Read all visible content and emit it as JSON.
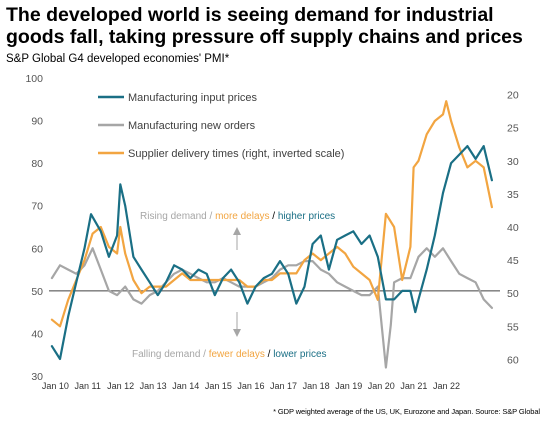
{
  "header": {
    "title": "The developed world is seeing demand for industrial goods fall, taking pressure off supply chains and prices",
    "subtitle": "S&P Global G4 developed economies' PMI*",
    "footnote": "* GDP weighted average of the US, UK, Eurozone and Japan.  Source: S&P Global"
  },
  "colors": {
    "input_prices": "#1a6f85",
    "new_orders": "#a6a6a6",
    "delivery": "#f2a541",
    "baseline": "#404040",
    "arrow": "#a6a6a6",
    "ann_grey": "#a6a6a6"
  },
  "annotations": {
    "rising": [
      "Rising demand",
      " / ",
      "more delays",
      " / ",
      "higher prices"
    ],
    "falling": [
      "Falling demand",
      " / ",
      "fewer delays",
      " / ",
      "lower prices"
    ]
  },
  "chart_data": {
    "type": "line",
    "x_ticks": [
      "Jan 10",
      "Jan 11",
      "Jan 12",
      "Jan 13",
      "Jan 14",
      "Jan 15",
      "Jan 16",
      "Jan 17",
      "Jan 18",
      "Jan 19",
      "Jan 20",
      "Jan 21",
      "Jan 22"
    ],
    "ylim_left": [
      30,
      100
    ],
    "left_ticks": [
      30,
      40,
      50,
      60,
      70,
      80,
      90,
      100
    ],
    "ylim_right": [
      62.5,
      17.5
    ],
    "right_ticks": [
      20,
      25,
      30,
      35,
      40,
      45,
      50,
      55,
      60
    ],
    "right_inverted": true,
    "reference_line": 50,
    "legend_position": "top-left",
    "series": [
      {
        "name": "Manufacturing input prices",
        "axis": "left",
        "points": [
          [
            2010.0,
            37
          ],
          [
            2010.25,
            34
          ],
          [
            2010.5,
            44
          ],
          [
            2010.75,
            52
          ],
          [
            2011.0,
            60
          ],
          [
            2011.2,
            68
          ],
          [
            2011.5,
            64
          ],
          [
            2011.75,
            58
          ],
          [
            2012.0,
            63
          ],
          [
            2012.1,
            75
          ],
          [
            2012.25,
            70
          ],
          [
            2012.5,
            58
          ],
          [
            2012.75,
            55
          ],
          [
            2013.0,
            52
          ],
          [
            2013.25,
            49
          ],
          [
            2013.5,
            52
          ],
          [
            2013.75,
            56
          ],
          [
            2014.0,
            55
          ],
          [
            2014.25,
            53
          ],
          [
            2014.5,
            55
          ],
          [
            2014.75,
            54
          ],
          [
            2015.0,
            49
          ],
          [
            2015.25,
            53
          ],
          [
            2015.5,
            55
          ],
          [
            2015.75,
            52
          ],
          [
            2016.0,
            47
          ],
          [
            2016.25,
            51
          ],
          [
            2016.5,
            53
          ],
          [
            2016.75,
            54
          ],
          [
            2017.0,
            57
          ],
          [
            2017.25,
            54
          ],
          [
            2017.5,
            47
          ],
          [
            2017.75,
            51
          ],
          [
            2018.0,
            61
          ],
          [
            2018.25,
            63
          ],
          [
            2018.5,
            55
          ],
          [
            2018.75,
            62
          ],
          [
            2019.0,
            63
          ],
          [
            2019.25,
            64
          ],
          [
            2019.5,
            61
          ],
          [
            2019.75,
            63
          ],
          [
            2020.0,
            58
          ],
          [
            2020.25,
            48
          ],
          [
            2020.5,
            48
          ],
          [
            2020.75,
            50
          ],
          [
            2021.0,
            50
          ],
          [
            2021.15,
            45
          ],
          [
            2021.25,
            48
          ],
          [
            2021.5,
            55
          ],
          [
            2021.75,
            63
          ],
          [
            2022.0,
            73
          ],
          [
            2022.25,
            80
          ],
          [
            2022.5,
            82
          ],
          [
            2022.75,
            84
          ],
          [
            2023.0,
            81
          ],
          [
            2023.25,
            84
          ],
          [
            2023.5,
            76
          ]
        ]
      },
      {
        "name": "Manufacturing new orders",
        "axis": "left",
        "points": [
          [
            2010.0,
            53
          ],
          [
            2010.25,
            56
          ],
          [
            2010.5,
            55
          ],
          [
            2010.75,
            54
          ],
          [
            2011.0,
            56
          ],
          [
            2011.25,
            60
          ],
          [
            2011.5,
            55
          ],
          [
            2011.75,
            50
          ],
          [
            2012.0,
            49
          ],
          [
            2012.25,
            51
          ],
          [
            2012.5,
            48
          ],
          [
            2012.75,
            47
          ],
          [
            2013.0,
            49
          ],
          [
            2013.25,
            50
          ],
          [
            2013.5,
            52
          ],
          [
            2013.75,
            54
          ],
          [
            2014.0,
            55
          ],
          [
            2014.25,
            54
          ],
          [
            2014.5,
            53
          ],
          [
            2014.75,
            52
          ],
          [
            2015.0,
            52
          ],
          [
            2015.25,
            53
          ],
          [
            2015.5,
            52
          ],
          [
            2015.75,
            51
          ],
          [
            2016.0,
            51
          ],
          [
            2016.25,
            51
          ],
          [
            2016.5,
            52
          ],
          [
            2016.75,
            53
          ],
          [
            2017.0,
            55
          ],
          [
            2017.25,
            56
          ],
          [
            2017.5,
            56
          ],
          [
            2017.75,
            57
          ],
          [
            2018.0,
            57
          ],
          [
            2018.25,
            55
          ],
          [
            2018.5,
            54
          ],
          [
            2018.75,
            52
          ],
          [
            2019.0,
            51
          ],
          [
            2019.25,
            50
          ],
          [
            2019.5,
            49
          ],
          [
            2019.75,
            49
          ],
          [
            2020.0,
            51
          ],
          [
            2020.25,
            32
          ],
          [
            2020.4,
            42
          ],
          [
            2020.5,
            52
          ],
          [
            2020.75,
            53
          ],
          [
            2021.0,
            53
          ],
          [
            2021.25,
            58
          ],
          [
            2021.5,
            60
          ],
          [
            2021.75,
            58
          ],
          [
            2022.0,
            60
          ],
          [
            2022.25,
            57
          ],
          [
            2022.5,
            54
          ],
          [
            2022.75,
            53
          ],
          [
            2023.0,
            52
          ],
          [
            2023.25,
            48
          ],
          [
            2023.5,
            46
          ]
        ]
      },
      {
        "name": "Supplier delivery times (right, inverted scale)",
        "axis": "right",
        "points": [
          [
            2010.0,
            54
          ],
          [
            2010.25,
            55
          ],
          [
            2010.5,
            51
          ],
          [
            2010.75,
            48
          ],
          [
            2011.0,
            45
          ],
          [
            2011.25,
            41
          ],
          [
            2011.5,
            40
          ],
          [
            2011.75,
            43
          ],
          [
            2012.0,
            44
          ],
          [
            2012.1,
            40
          ],
          [
            2012.25,
            44
          ],
          [
            2012.5,
            48
          ],
          [
            2012.75,
            50
          ],
          [
            2013.0,
            49
          ],
          [
            2013.25,
            49
          ],
          [
            2013.5,
            49
          ],
          [
            2013.75,
            48
          ],
          [
            2014.0,
            47
          ],
          [
            2014.25,
            48
          ],
          [
            2014.5,
            48
          ],
          [
            2014.75,
            48
          ],
          [
            2015.0,
            48
          ],
          [
            2015.25,
            48
          ],
          [
            2015.5,
            48
          ],
          [
            2015.75,
            48
          ],
          [
            2016.0,
            49
          ],
          [
            2016.25,
            49
          ],
          [
            2016.5,
            48
          ],
          [
            2016.75,
            48
          ],
          [
            2017.0,
            47
          ],
          [
            2017.25,
            47
          ],
          [
            2017.5,
            47
          ],
          [
            2017.75,
            45
          ],
          [
            2018.0,
            44
          ],
          [
            2018.25,
            45
          ],
          [
            2018.5,
            44
          ],
          [
            2018.75,
            43
          ],
          [
            2019.0,
            44
          ],
          [
            2019.25,
            46
          ],
          [
            2019.5,
            47
          ],
          [
            2019.75,
            48
          ],
          [
            2020.0,
            51
          ],
          [
            2020.25,
            38
          ],
          [
            2020.5,
            40
          ],
          [
            2020.75,
            48
          ],
          [
            2021.0,
            43
          ],
          [
            2021.1,
            31
          ],
          [
            2021.25,
            30
          ],
          [
            2021.5,
            26
          ],
          [
            2021.75,
            24
          ],
          [
            2022.0,
            23
          ],
          [
            2022.1,
            21
          ],
          [
            2022.25,
            24
          ],
          [
            2022.5,
            28
          ],
          [
            2022.75,
            31
          ],
          [
            2023.0,
            30
          ],
          [
            2023.25,
            31
          ],
          [
            2023.5,
            37
          ]
        ]
      }
    ]
  }
}
